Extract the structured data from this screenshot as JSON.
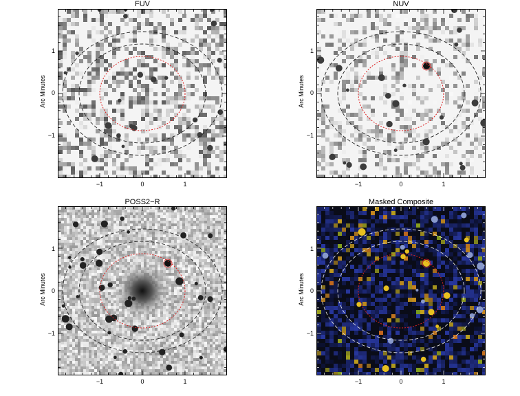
{
  "panels": [
    {
      "id": "fuv",
      "title": "FUV",
      "ylabel": "Arc Minutes",
      "style": "fuv"
    },
    {
      "id": "nuv",
      "title": "NUV",
      "ylabel": "Arc Minutes",
      "style": "nuv"
    },
    {
      "id": "poss",
      "title": "POSS2−R",
      "ylabel": "Arc Minutes",
      "style": "poss"
    },
    {
      "id": "comp",
      "title": "Masked Composite",
      "ylabel": "Arc Minutes",
      "style": "comp"
    }
  ],
  "ticks": {
    "x": [
      "−1",
      "0",
      "1"
    ],
    "y": [
      "1",
      "0",
      "−1"
    ]
  },
  "colors": {
    "inner_ellipse": "#dd2222",
    "outer_ellipse_dark": "#222222",
    "outer_ellipse_light": "#dddddd",
    "composite_bg": "#0a0c18",
    "composite_blue": "#3048a0",
    "composite_yellow": "#e8c020"
  }
}
